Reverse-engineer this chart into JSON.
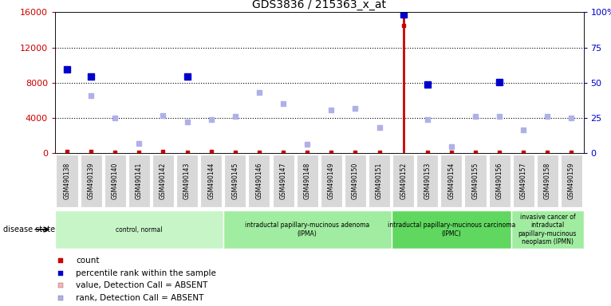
{
  "title": "GDS3836 / 215363_x_at",
  "samples": [
    "GSM490138",
    "GSM490139",
    "GSM490140",
    "GSM490141",
    "GSM490142",
    "GSM490143",
    "GSM490144",
    "GSM490145",
    "GSM490146",
    "GSM490147",
    "GSM490148",
    "GSM490149",
    "GSM490150",
    "GSM490151",
    "GSM490152",
    "GSM490153",
    "GSM490154",
    "GSM490155",
    "GSM490156",
    "GSM490157",
    "GSM490158",
    "GSM490159"
  ],
  "count_values": [
    150,
    150,
    100,
    100,
    150,
    100,
    150,
    100,
    100,
    100,
    100,
    100,
    100,
    100,
    14500,
    100,
    100,
    100,
    100,
    100,
    100,
    100
  ],
  "percentile_values": [
    9500,
    8700,
    null,
    null,
    null,
    8700,
    null,
    null,
    null,
    null,
    null,
    null,
    null,
    null,
    15800,
    7800,
    null,
    null,
    8050,
    null,
    null,
    null
  ],
  "rank_absent": [
    null,
    6500,
    4000,
    1100,
    4300,
    3500,
    3800,
    4200,
    6900,
    5600,
    1000,
    4900,
    5100,
    2900,
    null,
    3800,
    750,
    4200,
    4200,
    2600,
    4200,
    4000
  ],
  "highlighted_bar": 14,
  "ylim_left": [
    0,
    16000
  ],
  "ylim_right": [
    0,
    100
  ],
  "yticks_left": [
    0,
    4000,
    8000,
    12000,
    16000
  ],
  "yticks_right": [
    0,
    25,
    50,
    75,
    100
  ],
  "group_configs": [
    {
      "label": "control, normal",
      "start": 0,
      "end": 6,
      "color": "#c8f5c8"
    },
    {
      "label": "intraductal papillary-mucinous adenoma\n(IPMA)",
      "start": 7,
      "end": 13,
      "color": "#a0eca0"
    },
    {
      "label": "intraductal papillary-mucinous carcinoma\n(IPMC)",
      "start": 14,
      "end": 18,
      "color": "#60d860"
    },
    {
      "label": "invasive cancer of\nintraductal\npapillary-mucinous\nneoplasm (IPMN)",
      "start": 19,
      "end": 21,
      "color": "#a0eca0"
    }
  ],
  "plot_bg_color": "#ffffff",
  "fig_bg_color": "#ffffff",
  "count_color": "#cc0000",
  "percentile_color": "#0000cc",
  "value_absent_color": "#ffb0b0",
  "rank_absent_color": "#b0b0e8",
  "bar_highlight_color": "#cc0000",
  "xtick_bg_color": "#d8d8d8"
}
